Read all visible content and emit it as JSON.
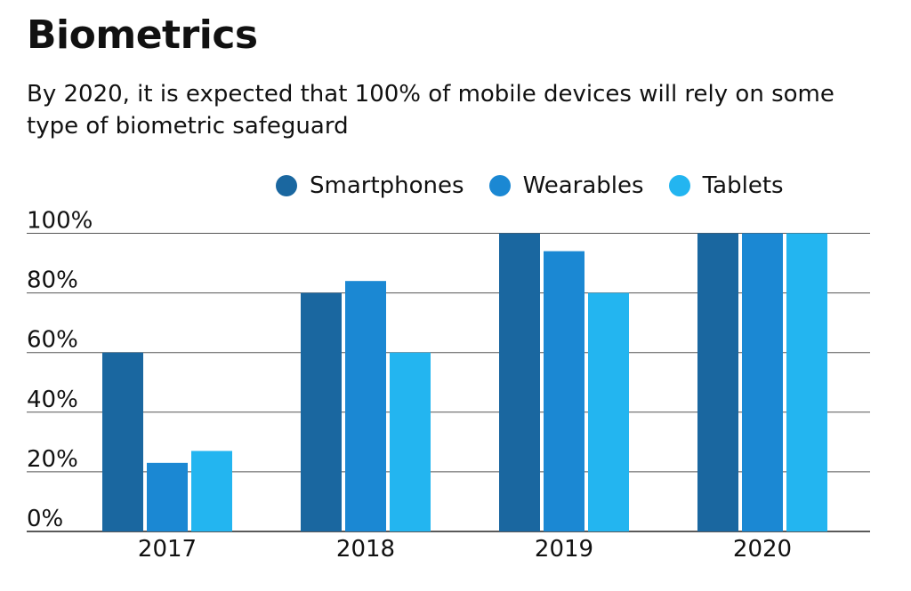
{
  "title": "Biometrics",
  "subtitle": "By 2020, it is expected that 100% of mobile devices will rely on some type of biometric safeguard",
  "chart_data": {
    "type": "bar",
    "title": "Biometrics",
    "subtitle": "By 2020, it is expected that 100% of mobile devices will rely on some type of biometric safeguard",
    "categories": [
      "2017",
      "2018",
      "2019",
      "2020"
    ],
    "series": [
      {
        "name": "Smartphones",
        "color": "#1a67a0",
        "values": [
          60,
          80,
          100,
          100
        ]
      },
      {
        "name": "Wearables",
        "color": "#1b88d3",
        "values": [
          23,
          84,
          94,
          100
        ]
      },
      {
        "name": "Tablets",
        "color": "#23b5f0",
        "values": [
          27,
          60,
          80,
          100
        ]
      }
    ],
    "yticks": [
      "0%",
      "20%",
      "40%",
      "60%",
      "80%",
      "100%"
    ],
    "ylim": [
      0,
      100
    ],
    "xlabel": "",
    "ylabel": "",
    "grid": true,
    "legend": "top-right"
  }
}
